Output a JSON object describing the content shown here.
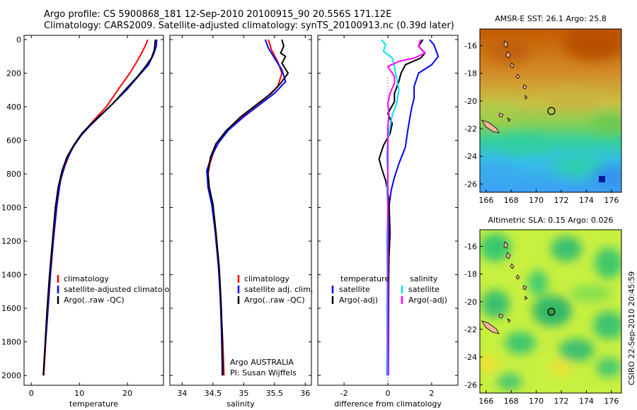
{
  "header": {
    "line1": "Argo profile: CS 5900868_181 12-Sep-2010 20100915_90 20.556S 171.12E",
    "line2": "Climatology: CARS2009. Satellite-adjusted climatology: synTS_20100913.nc (0.39d later)"
  },
  "footer": {
    "credit": "CSIRO 22-Sep-2010 20:45:59"
  },
  "colors": {
    "clim": "#ff0000",
    "sat": "#0000ff",
    "argo": "#000000",
    "sal_sat": "#00e5ee",
    "sal_argo": "#ff00ff"
  },
  "chart_data": [
    {
      "type": "line",
      "id": "temperature",
      "xlabel": "temperature",
      "ylabel": "",
      "xlim": [
        -1.5,
        27.5
      ],
      "ylim": [
        0,
        2050
      ],
      "xticks": [
        0,
        10,
        20
      ],
      "yticks": [
        0,
        200,
        400,
        600,
        800,
        1000,
        1200,
        1400,
        1600,
        1800,
        2000
      ],
      "legend": {
        "position": "middle-right",
        "entries": [
          {
            "label": "climatology",
            "color": "#ff0000"
          },
          {
            "label": "satellite-adjusted climatology",
            "color": "#0000ff"
          },
          {
            "label": "Argo(..raw -QC)",
            "color": "#000000"
          }
        ]
      },
      "series": [
        {
          "name": "climatology",
          "color": "#ff0000",
          "points": [
            [
              24.2,
              0
            ],
            [
              24,
              20
            ],
            [
              23.3,
              60
            ],
            [
              22.2,
              120
            ],
            [
              20.5,
              200
            ],
            [
              18,
              300
            ],
            [
              15.6,
              400
            ],
            [
              13,
              480
            ],
            [
              11.2,
              540
            ],
            [
              9.5,
              600
            ],
            [
              8,
              680
            ],
            [
              6.9,
              760
            ],
            [
              6,
              850
            ],
            [
              5.3,
              1000
            ],
            [
              4.6,
              1200
            ],
            [
              4,
              1400
            ],
            [
              3.5,
              1600
            ],
            [
              3,
              1800
            ],
            [
              2.6,
              2000
            ]
          ]
        },
        {
          "name": "satellite-adjusted climatology",
          "color": "#0000ff",
          "points": [
            [
              26.1,
              0
            ],
            [
              26,
              40
            ],
            [
              25.4,
              90
            ],
            [
              24.4,
              150
            ],
            [
              22.2,
              220
            ],
            [
              19.8,
              300
            ],
            [
              17,
              380
            ],
            [
              14.5,
              450
            ],
            [
              12,
              520
            ],
            [
              10.4,
              570
            ],
            [
              8.7,
              640
            ],
            [
              7.3,
              720
            ],
            [
              6.2,
              820
            ],
            [
              5.4,
              960
            ],
            [
              4.7,
              1150
            ],
            [
              4.1,
              1350
            ],
            [
              3.6,
              1550
            ],
            [
              3.1,
              1750
            ],
            [
              2.6,
              1950
            ],
            [
              2.5,
              2000
            ]
          ]
        },
        {
          "name": "Argo(..raw -QC)",
          "color": "#000000",
          "points": [
            [
              25.8,
              0
            ],
            [
              25.6,
              60
            ],
            [
              25,
              110
            ],
            [
              23.5,
              170
            ],
            [
              21.8,
              230
            ],
            [
              19.5,
              300
            ],
            [
              17,
              380
            ],
            [
              14.8,
              440
            ],
            [
              12.5,
              500
            ],
            [
              10.5,
              560
            ],
            [
              8.8,
              630
            ],
            [
              7.4,
              700
            ],
            [
              6.4,
              780
            ],
            [
              5.6,
              880
            ],
            [
              5,
              1000
            ],
            [
              4.4,
              1200
            ],
            [
              3.8,
              1400
            ],
            [
              3.3,
              1600
            ],
            [
              2.9,
              1800
            ],
            [
              2.5,
              2000
            ]
          ]
        }
      ]
    },
    {
      "type": "line",
      "id": "salinity",
      "xlabel": "salinity",
      "ylabel": "",
      "xlim": [
        33.8,
        36.1
      ],
      "ylim": [
        0,
        2050
      ],
      "xticks": [
        34,
        34.5,
        35,
        35.5,
        36
      ],
      "annotation": [
        "Argo AUSTRALIA",
        "PI: Susan Wijffels"
      ],
      "legend": {
        "position": "middle-right",
        "entries": [
          {
            "label": "climatology",
            "color": "#ff0000"
          },
          {
            "label": "satellite adj. clim.",
            "color": "#0000ff"
          },
          {
            "label": "Argo(..raw -QC)",
            "color": "#000000"
          }
        ]
      },
      "series": [
        {
          "name": "climatology",
          "color": "#ff0000",
          "points": [
            [
              35.4,
              0
            ],
            [
              35.45,
              60
            ],
            [
              35.55,
              130
            ],
            [
              35.62,
              200
            ],
            [
              35.55,
              280
            ],
            [
              35.35,
              350
            ],
            [
              35.1,
              420
            ],
            [
              34.85,
              500
            ],
            [
              34.65,
              580
            ],
            [
              34.52,
              660
            ],
            [
              34.45,
              740
            ],
            [
              34.42,
              800
            ],
            [
              34.44,
              900
            ],
            [
              34.5,
              1000
            ],
            [
              34.55,
              1200
            ],
            [
              34.6,
              1400
            ],
            [
              34.63,
              1600
            ],
            [
              34.66,
              1800
            ],
            [
              34.68,
              2000
            ]
          ]
        },
        {
          "name": "satellite adj. clim.",
          "color": "#0000ff",
          "points": [
            [
              35.35,
              0
            ],
            [
              35.4,
              50
            ],
            [
              35.5,
              110
            ],
            [
              35.62,
              180
            ],
            [
              35.68,
              250
            ],
            [
              35.5,
              320
            ],
            [
              35.25,
              390
            ],
            [
              35,
              460
            ],
            [
              34.75,
              540
            ],
            [
              34.58,
              620
            ],
            [
              34.47,
              700
            ],
            [
              34.4,
              780
            ],
            [
              34.42,
              880
            ],
            [
              34.48,
              980
            ],
            [
              34.54,
              1150
            ],
            [
              34.59,
              1350
            ],
            [
              34.62,
              1550
            ],
            [
              34.64,
              1750
            ],
            [
              34.65,
              1950
            ],
            [
              34.65,
              2000
            ]
          ]
        },
        {
          "name": "Argo(..raw -QC)",
          "color": "#000000",
          "points": [
            [
              35.62,
              0
            ],
            [
              35.65,
              40
            ],
            [
              35.6,
              80
            ],
            [
              35.68,
              100
            ],
            [
              35.62,
              140
            ],
            [
              35.72,
              200
            ],
            [
              35.6,
              260
            ],
            [
              35.45,
              320
            ],
            [
              35.2,
              390
            ],
            [
              34.95,
              460
            ],
            [
              34.72,
              540
            ],
            [
              34.55,
              620
            ],
            [
              34.46,
              700
            ],
            [
              34.42,
              790
            ],
            [
              34.44,
              880
            ],
            [
              34.5,
              980
            ],
            [
              34.55,
              1150
            ],
            [
              34.6,
              1350
            ],
            [
              34.63,
              1550
            ],
            [
              34.65,
              1750
            ],
            [
              34.66,
              1950
            ],
            [
              34.66,
              2000
            ]
          ]
        }
      ]
    },
    {
      "type": "line",
      "id": "difference",
      "xlabel": "difference from climatology",
      "ylabel": "",
      "xlim": [
        -3.2,
        3.2
      ],
      "ylim": [
        0,
        2050
      ],
      "xticks": [
        -2,
        0,
        2
      ],
      "legend": {
        "position": "middle-right",
        "entries": [
          {
            "label": "temperature",
            "color": null
          },
          {
            "label": "satellite",
            "color": "#0000ff"
          },
          {
            "label": "Argo(-adj)",
            "color": "#000000"
          },
          {
            "label": "salinity",
            "color": null
          },
          {
            "label": "satellite",
            "color": "#00e5ee"
          },
          {
            "label": "Argo(-adj)",
            "color": "#ff00ff"
          }
        ]
      },
      "series": [
        {
          "name": "temperature satellite",
          "color": "#0000ff",
          "points": [
            [
              1.9,
              0
            ],
            [
              2.1,
              30
            ],
            [
              2.3,
              100
            ],
            [
              2,
              150
            ],
            [
              1.4,
              200
            ],
            [
              1.2,
              280
            ],
            [
              1.2,
              350
            ],
            [
              1.1,
              400
            ],
            [
              1,
              470
            ],
            [
              0.9,
              550
            ],
            [
              0.8,
              640
            ],
            [
              0.5,
              740
            ],
            [
              0.3,
              820
            ],
            [
              0.15,
              900
            ],
            [
              0.05,
              1000
            ],
            [
              0.05,
              1200
            ],
            [
              0.04,
              1400
            ],
            [
              0.03,
              1700
            ],
            [
              0.02,
              2000
            ]
          ]
        },
        {
          "name": "temperature Argo(-adj)",
          "color": "#000000",
          "points": [
            [
              1.6,
              0
            ],
            [
              1.4,
              40
            ],
            [
              1.7,
              80
            ],
            [
              1.5,
              110
            ],
            [
              0.8,
              150
            ],
            [
              0.6,
              200
            ],
            [
              0.5,
              250
            ],
            [
              0.3,
              320
            ],
            [
              0.3,
              370
            ],
            [
              0,
              440
            ],
            [
              0.2,
              500
            ],
            [
              0.1,
              560
            ],
            [
              -0.2,
              630
            ],
            [
              -0.4,
              710
            ],
            [
              -0.3,
              760
            ],
            [
              -0.1,
              840
            ],
            [
              0.05,
              950
            ],
            [
              0.1,
              1150
            ],
            [
              0.05,
              1300
            ],
            [
              0.02,
              1500
            ],
            [
              0.01,
              1800
            ],
            [
              0,
              2000
            ]
          ]
        },
        {
          "name": "salinity satellite",
          "color": "#00e5ee",
          "points": [
            [
              -0.3,
              0
            ],
            [
              -0.1,
              30
            ],
            [
              -0.2,
              70
            ],
            [
              0.2,
              110
            ],
            [
              0.3,
              160
            ],
            [
              0.4,
              230
            ],
            [
              0.5,
              300
            ],
            [
              0.4,
              380
            ],
            [
              0.2,
              450
            ],
            [
              0.1,
              520
            ],
            [
              0,
              600
            ],
            [
              -0.05,
              700
            ],
            [
              0,
              800
            ],
            [
              -0.05,
              900
            ],
            [
              0,
              1000
            ],
            [
              -0.05,
              1200
            ],
            [
              -0.03,
              1400
            ],
            [
              -0.05,
              1600
            ],
            [
              -0.04,
              1800
            ],
            [
              -0.06,
              2000
            ]
          ]
        },
        {
          "name": "salinity Argo(-adj)",
          "color": "#ff00ff",
          "points": [
            [
              1.5,
              0
            ],
            [
              1.4,
              40
            ],
            [
              1.7,
              80
            ],
            [
              1.2,
              110
            ],
            [
              0.5,
              130
            ],
            [
              0,
              160
            ],
            [
              0.3,
              220
            ],
            [
              0.3,
              260
            ],
            [
              0.1,
              320
            ],
            [
              0,
              380
            ],
            [
              0.05,
              450
            ],
            [
              0,
              520
            ],
            [
              0,
              620
            ],
            [
              0,
              800
            ],
            [
              0,
              1000
            ],
            [
              0,
              1400
            ],
            [
              0,
              2000
            ]
          ]
        }
      ]
    }
  ],
  "maps": [
    {
      "title": "AMSR-E SST: 26.1 Argo: 25.8",
      "xticks": [
        "166",
        "168",
        "170",
        "172",
        "174",
        "176"
      ],
      "yticks": [
        "-16",
        "-18",
        "-20",
        "-22",
        "-24",
        "-26"
      ],
      "lon_range": [
        165.5,
        176.8
      ],
      "lat_range": [
        -26.6,
        -14.8
      ],
      "argo_position": [
        171.12,
        -20.556
      ]
    },
    {
      "title": "Altimetric SLA: 0.15 Argo: 0.026",
      "xticks": [
        "166",
        "168",
        "170",
        "172",
        "174",
        "176"
      ],
      "yticks": [
        "-16",
        "-18",
        "-20",
        "-22",
        "-24",
        "-26"
      ],
      "lon_range": [
        165.5,
        176.8
      ],
      "lat_range": [
        -26.6,
        -14.8
      ],
      "argo_position": [
        171.12,
        -20.556
      ]
    }
  ]
}
